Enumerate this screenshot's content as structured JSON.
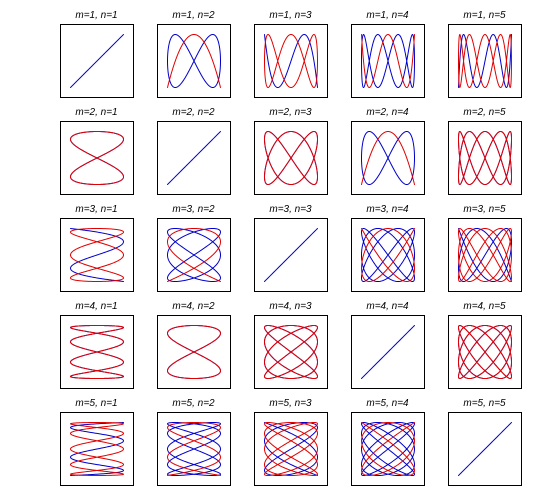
{
  "chart_data": {
    "type": "line",
    "grid": false,
    "x_parameter": "t",
    "colors": {
      "first_series": "#0000cc",
      "second_series": "#e00000"
    },
    "curve": "x = sin(m·t), y = sin(n·t + φ); two phase offsets per panel",
    "panels": [
      {
        "m": 1,
        "n": 1,
        "title": "m=1, n=1"
      },
      {
        "m": 1,
        "n": 2,
        "title": "m=1, n=2"
      },
      {
        "m": 1,
        "n": 3,
        "title": "m=1, n=3"
      },
      {
        "m": 1,
        "n": 4,
        "title": "m=1, n=4"
      },
      {
        "m": 1,
        "n": 5,
        "title": "m=1, n=5"
      },
      {
        "m": 2,
        "n": 1,
        "title": "m=2, n=1"
      },
      {
        "m": 2,
        "n": 2,
        "title": "m=2, n=2"
      },
      {
        "m": 2,
        "n": 3,
        "title": "m=2, n=3"
      },
      {
        "m": 2,
        "n": 4,
        "title": "m=2, n=4"
      },
      {
        "m": 2,
        "n": 5,
        "title": "m=2, n=5"
      },
      {
        "m": 3,
        "n": 1,
        "title": "m=3, n=1"
      },
      {
        "m": 3,
        "n": 2,
        "title": "m=3, n=2"
      },
      {
        "m": 3,
        "n": 3,
        "title": "m=3, n=3"
      },
      {
        "m": 3,
        "n": 4,
        "title": "m=3, n=4"
      },
      {
        "m": 3,
        "n": 5,
        "title": "m=3, n=5"
      },
      {
        "m": 4,
        "n": 1,
        "title": "m=4, n=1"
      },
      {
        "m": 4,
        "n": 2,
        "title": "m=4, n=2"
      },
      {
        "m": 4,
        "n": 3,
        "title": "m=4, n=3"
      },
      {
        "m": 4,
        "n": 4,
        "title": "m=4, n=4"
      },
      {
        "m": 4,
        "n": 5,
        "title": "m=4, n=5"
      },
      {
        "m": 5,
        "n": 1,
        "title": "m=5, n=1"
      },
      {
        "m": 5,
        "n": 2,
        "title": "m=5, n=2"
      },
      {
        "m": 5,
        "n": 3,
        "title": "m=5, n=3"
      },
      {
        "m": 5,
        "n": 4,
        "title": "m=5, n=4"
      },
      {
        "m": 5,
        "n": 5,
        "title": "m=5, n=5"
      }
    ],
    "series": [
      {
        "color": "#0000cc",
        "phase": 0
      },
      {
        "color": "#e00000",
        "phase": 1.5708
      }
    ]
  }
}
